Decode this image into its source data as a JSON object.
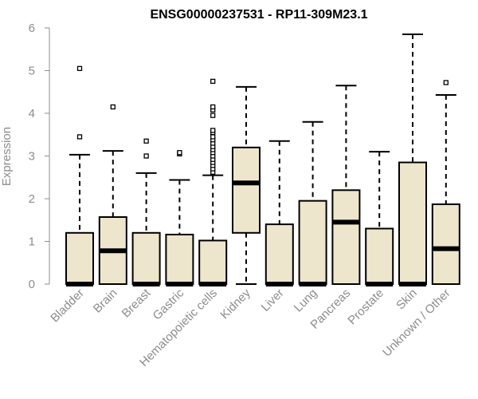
{
  "chart_data": {
    "type": "boxplot",
    "title": "ENSG00000237531 - RP11-309M23.1",
    "xlabel": "",
    "ylabel": "Expression",
    "ylim": [
      0,
      6
    ],
    "yticks": [
      0,
      1,
      2,
      3,
      4,
      5,
      6
    ],
    "grid": false,
    "box_fill": "#ede6cc",
    "box_stroke": "#000000",
    "axis_color": "#8c8c8c",
    "categories": [
      "Bladder",
      "Brain",
      "Breast",
      "Gastric",
      "Hematopoietic cells",
      "Kidney",
      "Liver",
      "Lung",
      "Pancreas",
      "Prostate",
      "Skin",
      "Unknown / Other"
    ],
    "boxes": [
      {
        "category": "Bladder",
        "q1": 0,
        "median": 0,
        "q3": 1.2,
        "whisker_low": 0,
        "whisker_high": 3.03,
        "outliers": [
          3.45,
          5.05
        ]
      },
      {
        "category": "Brain",
        "q1": 0,
        "median": 0.78,
        "q3": 1.57,
        "whisker_low": 0,
        "whisker_high": 3.12,
        "outliers": [
          4.15
        ]
      },
      {
        "category": "Breast",
        "q1": 0,
        "median": 0,
        "q3": 1.2,
        "whisker_low": 0,
        "whisker_high": 2.6,
        "outliers": [
          3.0,
          3.35
        ]
      },
      {
        "category": "Gastric",
        "q1": 0,
        "median": 0,
        "q3": 1.16,
        "whisker_low": 0,
        "whisker_high": 2.44,
        "outliers": [
          3.05,
          3.08
        ]
      },
      {
        "category": "Hematopoietic cells",
        "q1": 0,
        "median": 0,
        "q3": 1.02,
        "whisker_low": 0,
        "whisker_high": 2.55,
        "outliers": [
          2.62,
          2.7,
          2.78,
          2.85,
          2.92,
          3.0,
          3.08,
          3.15,
          3.22,
          3.3,
          3.38,
          3.45,
          3.55,
          3.6,
          3.95,
          4.08,
          4.15,
          4.75
        ]
      },
      {
        "category": "Kidney",
        "q1": 1.2,
        "median": 2.37,
        "q3": 3.2,
        "whisker_low": 0,
        "whisker_high": 4.62,
        "outliers": []
      },
      {
        "category": "Liver",
        "q1": 0,
        "median": 0,
        "q3": 1.4,
        "whisker_low": 0,
        "whisker_high": 3.35,
        "outliers": []
      },
      {
        "category": "Lung",
        "q1": 0,
        "median": 0,
        "q3": 1.95,
        "whisker_low": 0,
        "whisker_high": 3.8,
        "outliers": []
      },
      {
        "category": "Pancreas",
        "q1": 0,
        "median": 1.45,
        "q3": 2.2,
        "whisker_low": 0,
        "whisker_high": 4.65,
        "outliers": []
      },
      {
        "category": "Prostate",
        "q1": 0,
        "median": 0,
        "q3": 1.3,
        "whisker_low": 0,
        "whisker_high": 3.1,
        "outliers": []
      },
      {
        "category": "Skin",
        "q1": 0,
        "median": 0,
        "q3": 2.85,
        "whisker_low": 0,
        "whisker_high": 5.85,
        "outliers": []
      },
      {
        "category": "Unknown / Other",
        "q1": 0,
        "median": 0.83,
        "q3": 1.87,
        "whisker_low": 0,
        "whisker_high": 4.43,
        "outliers": [
          4.72
        ]
      }
    ]
  }
}
